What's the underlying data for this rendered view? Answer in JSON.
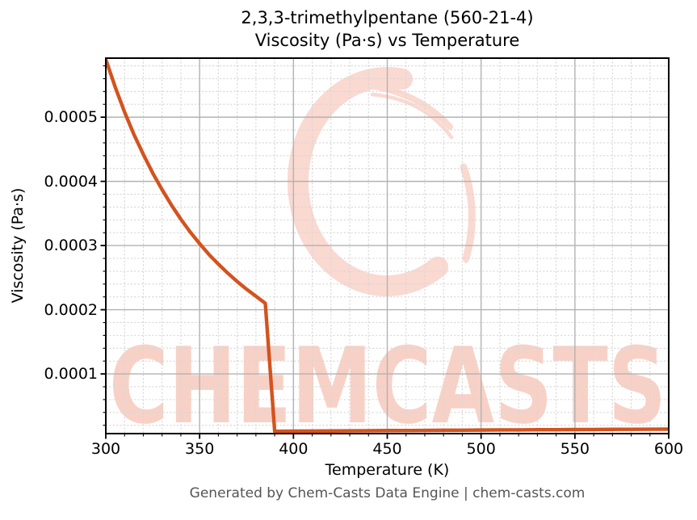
{
  "title": {
    "line1": "2,3,3-trimethylpentane (560-21-4)",
    "line2": "Viscosity (Pa·s) vs Temperature"
  },
  "footer": "Generated by Chem-Casts Data Engine | chem-casts.com",
  "watermark": {
    "text": "CHEMCASTS",
    "text_color": "#f8d1c6",
    "ring_color": "#fad9d1"
  },
  "colors": {
    "line": "#d3531e",
    "grid_major": "#b2b2b2",
    "grid_minor": "#d6d6d6",
    "spine": "#000000",
    "footer_text": "#555555"
  },
  "chart_data": {
    "type": "line",
    "title": "2,3,3-trimethylpentane (560-21-4) — Viscosity (Pa·s) vs Temperature",
    "xlabel": "Temperature (K)",
    "ylabel": "Viscosity (Pa·s)",
    "xlim": [
      300,
      600
    ],
    "ylim": [
      7e-06,
      0.000592
    ],
    "xticks": [
      300,
      350,
      400,
      450,
      500,
      550,
      600
    ],
    "yticks": [
      0.0001,
      0.0002,
      0.0003,
      0.0004,
      0.0005
    ],
    "ytick_labels": [
      "0.0001",
      "0.0002",
      "0.0003",
      "0.0004",
      "0.0005"
    ],
    "x_minor_step": 10,
    "y_minor_step": 2e-05,
    "grid": {
      "major": true,
      "minor": true
    },
    "legend": false,
    "line_color": "#d3531e",
    "line_width": 4.4,
    "series": [
      {
        "name": "viscosity",
        "x": [
          300,
          305,
          310,
          315,
          320,
          325,
          330,
          335,
          340,
          345,
          350,
          355,
          360,
          365,
          370,
          375,
          380,
          385,
          390,
          400,
          410,
          420,
          430,
          440,
          450,
          460,
          470,
          480,
          490,
          500,
          510,
          520,
          530,
          540,
          550,
          560,
          570,
          580,
          590,
          600
        ],
        "y": [
          0.00059,
          0.000547,
          0.000508,
          0.000473,
          0.000442,
          0.000413,
          0.000387,
          0.000363,
          0.000341,
          0.000321,
          0.000303,
          0.000286,
          0.000271,
          0.000257,
          0.000244,
          0.000232,
          0.000221,
          0.00021,
          1.06e-05,
          1.08e-05,
          1.1e-05,
          1.11e-05,
          1.13e-05,
          1.15e-05,
          1.17e-05,
          1.18e-05,
          1.2e-05,
          1.22e-05,
          1.23e-05,
          1.25e-05,
          1.27e-05,
          1.28e-05,
          1.3e-05,
          1.31e-05,
          1.33e-05,
          1.34e-05,
          1.36e-05,
          1.37e-05,
          1.39e-05,
          1.4e-05
        ]
      }
    ]
  }
}
